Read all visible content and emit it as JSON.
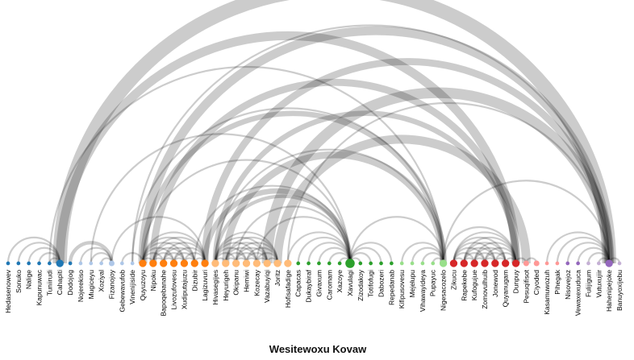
{
  "chart_data": {
    "type": "arc-diagram",
    "title": "Wesitewoxu Kovaw",
    "nodes": [
      {
        "label": "Hedasenowev",
        "color": "#1f77b4",
        "size": 1
      },
      {
        "label": "Sonuko",
        "color": "#1f77b4",
        "size": 1
      },
      {
        "label": "Nalige",
        "color": "#1f77b4",
        "size": 1
      },
      {
        "label": "Kapunuwac",
        "color": "#1f77b4",
        "size": 1
      },
      {
        "label": "Tuniirudi",
        "color": "#1f77b4",
        "size": 1
      },
      {
        "label": "Cahapiti",
        "color": "#1f77b4",
        "size": 3
      },
      {
        "label": "Dodojog",
        "color": "#1f77b4",
        "size": 1
      },
      {
        "label": "Nojerekiso",
        "color": "#aec7e8",
        "size": 1
      },
      {
        "label": "Mugiceyu",
        "color": "#aec7e8",
        "size": 1
      },
      {
        "label": "Xoziyal",
        "color": "#aec7e8",
        "size": 1
      },
      {
        "label": "Fizanojoy",
        "color": "#aec7e8",
        "size": 2
      },
      {
        "label": "Gebewavufob",
        "color": "#aec7e8",
        "size": 1
      },
      {
        "label": "Vinenijiside",
        "color": "#aec7e8",
        "size": 1
      },
      {
        "label": "Quyuzoyu",
        "color": "#ff7f0e",
        "size": 3
      },
      {
        "label": "Nipoku",
        "color": "#ff7f0e",
        "size": 3
      },
      {
        "label": "Bapoqebanahe",
        "color": "#ff7f0e",
        "size": 3
      },
      {
        "label": "Livozufovesu",
        "color": "#ff7f0e",
        "size": 3
      },
      {
        "label": "Xudiputajuzu",
        "color": "#ff7f0e",
        "size": 3
      },
      {
        "label": "Dizubir",
        "color": "#ff7f0e",
        "size": 3
      },
      {
        "label": "Lagizuvuri",
        "color": "#ff7f0e",
        "size": 3
      },
      {
        "label": "Hivasegijes",
        "color": "#ffbb78",
        "size": 3
      },
      {
        "label": "Heyurigeh",
        "color": "#ffbb78",
        "size": 3
      },
      {
        "label": "Okipanu",
        "color": "#ffbb78",
        "size": 3
      },
      {
        "label": "Hemiwi",
        "color": "#ffbb78",
        "size": 3
      },
      {
        "label": "Kozecay",
        "color": "#ffbb78",
        "size": 3
      },
      {
        "label": "Vazabuyiqi",
        "color": "#ffbb78",
        "size": 3
      },
      {
        "label": "Joritz",
        "color": "#ffbb78",
        "size": 3
      },
      {
        "label": "Hofisafadige",
        "color": "#ffbb78",
        "size": 3
      },
      {
        "label": "Capacas",
        "color": "#2ca02c",
        "size": 1
      },
      {
        "label": "Dukaybiraf",
        "color": "#2ca02c",
        "size": 1
      },
      {
        "label": "Givaxum",
        "color": "#2ca02c",
        "size": 1
      },
      {
        "label": "Caromam",
        "color": "#2ca02c",
        "size": 1
      },
      {
        "label": "Xazoye",
        "color": "#2ca02c",
        "size": 1
      },
      {
        "label": "Xavulagi",
        "color": "#2ca02c",
        "size": 4
      },
      {
        "label": "Zizodakoy",
        "color": "#2ca02c",
        "size": 1
      },
      {
        "label": "Totifofugi",
        "color": "#2ca02c",
        "size": 1
      },
      {
        "label": "Dabozeri",
        "color": "#2ca02c",
        "size": 1
      },
      {
        "label": "Repedanab",
        "color": "#2ca02c",
        "size": 1
      },
      {
        "label": "Kifipusovesu",
        "color": "#98df8a",
        "size": 1
      },
      {
        "label": "Mejelupu",
        "color": "#98df8a",
        "size": 1
      },
      {
        "label": "Vihawayideya",
        "color": "#98df8a",
        "size": 1
      },
      {
        "label": "Pupayuc",
        "color": "#98df8a",
        "size": 1
      },
      {
        "label": "Nigesacozelo",
        "color": "#98df8a",
        "size": 3
      },
      {
        "label": "Zikucu",
        "color": "#d62728",
        "size": 3
      },
      {
        "label": "Rapekebe",
        "color": "#d62728",
        "size": 3
      },
      {
        "label": "Kufogujue",
        "color": "#d62728",
        "size": 3
      },
      {
        "label": "Zomovulhuib",
        "color": "#d62728",
        "size": 3
      },
      {
        "label": "Jonewod",
        "color": "#d62728",
        "size": 3
      },
      {
        "label": "Quyanugam",
        "color": "#d62728",
        "size": 3
      },
      {
        "label": "Dunpuy",
        "color": "#d62728",
        "size": 3
      },
      {
        "label": "Pesuqifisot",
        "color": "#ff9896",
        "size": 2
      },
      {
        "label": "Ciyoded",
        "color": "#ff9896",
        "size": 2
      },
      {
        "label": "Kasamuwozuh",
        "color": "#ff9896",
        "size": 1
      },
      {
        "label": "Pihegak",
        "color": "#ff9896",
        "size": 1
      },
      {
        "label": "Nisovejoz",
        "color": "#9467bd",
        "size": 1
      },
      {
        "label": "Vewaxexuduca",
        "color": "#9467bd",
        "size": 1
      },
      {
        "label": "Fulijigum",
        "color": "#c5b0d5",
        "size": 1
      },
      {
        "label": "Vutuxujiir",
        "color": "#c5b0d5",
        "size": 1
      },
      {
        "label": "Hahenipejoke",
        "color": "#9467bd",
        "size": 3
      },
      {
        "label": "Banuyoxijebu",
        "color": "#c5b0d5",
        "size": 1
      }
    ],
    "links": [
      {
        "source": 1,
        "target": 5,
        "value": 1
      },
      {
        "source": 2,
        "target": 5,
        "value": 1
      },
      {
        "source": 3,
        "target": 5,
        "value": 1
      },
      {
        "source": 4,
        "target": 5,
        "value": 1
      },
      {
        "source": 6,
        "target": 10,
        "value": 2
      },
      {
        "source": 7,
        "target": 10,
        "value": 1
      },
      {
        "source": 8,
        "target": 10,
        "value": 1
      },
      {
        "source": 9,
        "target": 10,
        "value": 1
      },
      {
        "source": 11,
        "target": 13,
        "value": 1
      },
      {
        "source": 5,
        "target": 58,
        "value": 8
      },
      {
        "source": 5,
        "target": 49,
        "value": 5
      },
      {
        "source": 13,
        "target": 58,
        "value": 5
      },
      {
        "source": 14,
        "target": 49,
        "value": 4
      },
      {
        "source": 13,
        "target": 42,
        "value": 3
      },
      {
        "source": 19,
        "target": 58,
        "value": 4
      },
      {
        "source": 20,
        "target": 49,
        "value": 3
      },
      {
        "source": 21,
        "target": 42,
        "value": 4
      },
      {
        "source": 25,
        "target": 58,
        "value": 6
      },
      {
        "source": 26,
        "target": 50,
        "value": 5
      },
      {
        "source": 19,
        "target": 33,
        "value": 3
      },
      {
        "source": 20,
        "target": 33,
        "value": 2
      },
      {
        "source": 8,
        "target": 33,
        "value": 1
      },
      {
        "source": 13,
        "target": 33,
        "value": 1
      },
      {
        "source": 28,
        "target": 33,
        "value": 1
      },
      {
        "source": 29,
        "target": 33,
        "value": 1
      },
      {
        "source": 30,
        "target": 33,
        "value": 1
      },
      {
        "source": 31,
        "target": 33,
        "value": 1
      },
      {
        "source": 32,
        "target": 33,
        "value": 1
      },
      {
        "source": 33,
        "target": 34,
        "value": 1
      },
      {
        "source": 33,
        "target": 35,
        "value": 1
      },
      {
        "source": 33,
        "target": 36,
        "value": 1
      },
      {
        "source": 33,
        "target": 37,
        "value": 1
      },
      {
        "source": 33,
        "target": 42,
        "value": 1
      },
      {
        "source": 38,
        "target": 42,
        "value": 1
      },
      {
        "source": 39,
        "target": 42,
        "value": 1
      },
      {
        "source": 40,
        "target": 42,
        "value": 1
      },
      {
        "source": 41,
        "target": 42,
        "value": 1
      },
      {
        "source": 42,
        "target": 58,
        "value": 1
      },
      {
        "source": 27,
        "target": 58,
        "value": 1
      },
      {
        "source": 4,
        "target": 42,
        "value": 1
      },
      {
        "source": 10,
        "target": 19,
        "value": 1
      },
      {
        "source": 13,
        "target": 14,
        "value": 1
      },
      {
        "source": 13,
        "target": 15,
        "value": 1
      },
      {
        "source": 13,
        "target": 16,
        "value": 1
      },
      {
        "source": 13,
        "target": 17,
        "value": 1
      },
      {
        "source": 13,
        "target": 18,
        "value": 1
      },
      {
        "source": 13,
        "target": 19,
        "value": 1
      },
      {
        "source": 14,
        "target": 15,
        "value": 1
      },
      {
        "source": 14,
        "target": 16,
        "value": 1
      },
      {
        "source": 14,
        "target": 17,
        "value": 1
      },
      {
        "source": 14,
        "target": 18,
        "value": 1
      },
      {
        "source": 14,
        "target": 19,
        "value": 1
      },
      {
        "source": 15,
        "target": 16,
        "value": 1
      },
      {
        "source": 15,
        "target": 17,
        "value": 1
      },
      {
        "source": 15,
        "target": 18,
        "value": 1
      },
      {
        "source": 15,
        "target": 19,
        "value": 1
      },
      {
        "source": 16,
        "target": 17,
        "value": 1
      },
      {
        "source": 16,
        "target": 18,
        "value": 1
      },
      {
        "source": 16,
        "target": 19,
        "value": 1
      },
      {
        "source": 17,
        "target": 18,
        "value": 1
      },
      {
        "source": 17,
        "target": 19,
        "value": 1
      },
      {
        "source": 18,
        "target": 19,
        "value": 1
      },
      {
        "source": 20,
        "target": 21,
        "value": 1
      },
      {
        "source": 20,
        "target": 22,
        "value": 1
      },
      {
        "source": 20,
        "target": 23,
        "value": 1
      },
      {
        "source": 20,
        "target": 24,
        "value": 1
      },
      {
        "source": 20,
        "target": 25,
        "value": 1
      },
      {
        "source": 20,
        "target": 26,
        "value": 1
      },
      {
        "source": 21,
        "target": 22,
        "value": 1
      },
      {
        "source": 21,
        "target": 23,
        "value": 1
      },
      {
        "source": 21,
        "target": 24,
        "value": 1
      },
      {
        "source": 21,
        "target": 25,
        "value": 1
      },
      {
        "source": 21,
        "target": 26,
        "value": 1
      },
      {
        "source": 22,
        "target": 23,
        "value": 1
      },
      {
        "source": 22,
        "target": 24,
        "value": 1
      },
      {
        "source": 22,
        "target": 25,
        "value": 1
      },
      {
        "source": 22,
        "target": 26,
        "value": 1
      },
      {
        "source": 23,
        "target": 24,
        "value": 1
      },
      {
        "source": 23,
        "target": 25,
        "value": 1
      },
      {
        "source": 23,
        "target": 26,
        "value": 1
      },
      {
        "source": 24,
        "target": 25,
        "value": 1
      },
      {
        "source": 24,
        "target": 26,
        "value": 1
      },
      {
        "source": 25,
        "target": 26,
        "value": 1
      },
      {
        "source": 43,
        "target": 44,
        "value": 1
      },
      {
        "source": 43,
        "target": 45,
        "value": 1
      },
      {
        "source": 43,
        "target": 46,
        "value": 1
      },
      {
        "source": 43,
        "target": 47,
        "value": 1
      },
      {
        "source": 43,
        "target": 48,
        "value": 1
      },
      {
        "source": 43,
        "target": 49,
        "value": 1
      },
      {
        "source": 44,
        "target": 45,
        "value": 1
      },
      {
        "source": 44,
        "target": 46,
        "value": 1
      },
      {
        "source": 44,
        "target": 47,
        "value": 1
      },
      {
        "source": 44,
        "target": 48,
        "value": 1
      },
      {
        "source": 44,
        "target": 49,
        "value": 1
      },
      {
        "source": 45,
        "target": 46,
        "value": 1
      },
      {
        "source": 45,
        "target": 47,
        "value": 1
      },
      {
        "source": 45,
        "target": 48,
        "value": 1
      },
      {
        "source": 45,
        "target": 49,
        "value": 1
      },
      {
        "source": 46,
        "target": 47,
        "value": 1
      },
      {
        "source": 46,
        "target": 48,
        "value": 1
      },
      {
        "source": 46,
        "target": 49,
        "value": 1
      },
      {
        "source": 47,
        "target": 48,
        "value": 1
      },
      {
        "source": 47,
        "target": 49,
        "value": 1
      },
      {
        "source": 48,
        "target": 49,
        "value": 1
      },
      {
        "source": 42,
        "target": 49,
        "value": 1
      },
      {
        "source": 49,
        "target": 50,
        "value": 1
      },
      {
        "source": 50,
        "target": 51,
        "value": 1
      },
      {
        "source": 53,
        "target": 58,
        "value": 1
      },
      {
        "source": 54,
        "target": 58,
        "value": 1
      },
      {
        "source": 55,
        "target": 58,
        "value": 1
      },
      {
        "source": 56,
        "target": 58,
        "value": 1
      },
      {
        "source": 57,
        "target": 58,
        "value": 1
      },
      {
        "source": 58,
        "target": 59,
        "value": 1
      },
      {
        "source": 52,
        "target": 58,
        "value": 1
      },
      {
        "source": 12,
        "target": 58,
        "value": 1
      },
      {
        "source": 12,
        "target": 42,
        "value": 1
      },
      {
        "source": 18,
        "target": 33,
        "value": 1
      },
      {
        "source": 22,
        "target": 33,
        "value": 1
      },
      {
        "source": 24,
        "target": 33,
        "value": 1
      },
      {
        "source": 27,
        "target": 33,
        "value": 1
      },
      {
        "source": 20,
        "target": 42,
        "value": 1
      },
      {
        "source": 0,
        "target": 5,
        "value": 1
      }
    ]
  }
}
